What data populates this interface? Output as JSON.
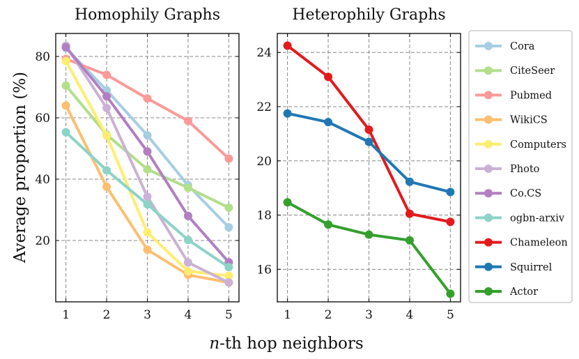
{
  "chart_data": [
    {
      "type": "line",
      "title": "Homophily Graphs",
      "ylabel": "Average proportion (%)",
      "xlabel": "",
      "x": [
        1,
        2,
        3,
        4,
        5
      ],
      "xlim": [
        0.75,
        5.25
      ],
      "ylim": [
        0,
        87.5
      ],
      "yticks": [
        20,
        40,
        60,
        80
      ],
      "grid": true,
      "series": [
        {
          "name": "Cora",
          "color": "#a6cee3",
          "values": [
            82.8,
            69.0,
            54.3,
            38.0,
            24.3
          ]
        },
        {
          "name": "CiteSeer",
          "color": "#b2df8a",
          "values": [
            70.5,
            54.5,
            43.2,
            37.2,
            30.7
          ]
        },
        {
          "name": "Pubmed",
          "color": "#fb9a99",
          "values": [
            79.2,
            74.0,
            66.3,
            59.0,
            46.7
          ]
        },
        {
          "name": "WikiCS",
          "color": "#fdbf6f",
          "values": [
            64.0,
            37.5,
            17.0,
            8.8,
            6.3
          ]
        },
        {
          "name": "Computers",
          "color": "#ffed6f",
          "values": [
            78.5,
            54.2,
            22.6,
            10.0,
            8.5
          ]
        },
        {
          "name": "Photo",
          "color": "#cab2d6",
          "values": [
            83.5,
            63.2,
            34.3,
            12.8,
            6.3
          ]
        },
        {
          "name": "Co.CS",
          "color": "#b27fc2",
          "values": [
            83.0,
            67.0,
            49.0,
            28.0,
            12.9
          ]
        },
        {
          "name": "ogbn-arxiv",
          "color": "#8dd3c7",
          "values": [
            55.3,
            42.9,
            31.8,
            20.2,
            11.3
          ]
        }
      ]
    },
    {
      "type": "line",
      "title": "Heterophily Graphs",
      "ylabel": "",
      "xlabel": "n-th hop neighbors",
      "x": [
        1,
        2,
        3,
        4,
        5
      ],
      "xlim": [
        0.75,
        5.25
      ],
      "ylim": [
        14.8,
        24.7
      ],
      "yticks": [
        16,
        18,
        20,
        22,
        24
      ],
      "grid": true,
      "series": [
        {
          "name": "Chameleon",
          "color": "#e31a1c",
          "values": [
            24.25,
            23.1,
            21.15,
            18.05,
            17.75
          ]
        },
        {
          "name": "Squirrel",
          "color": "#1f78b4",
          "values": [
            21.75,
            21.43,
            20.7,
            19.23,
            18.85
          ]
        },
        {
          "name": "Actor",
          "color": "#33a02c",
          "values": [
            18.47,
            17.65,
            17.28,
            17.07,
            15.1
          ]
        }
      ]
    }
  ],
  "xlabel_italic": "n",
  "xlabel_rest": "-th hop neighbors"
}
